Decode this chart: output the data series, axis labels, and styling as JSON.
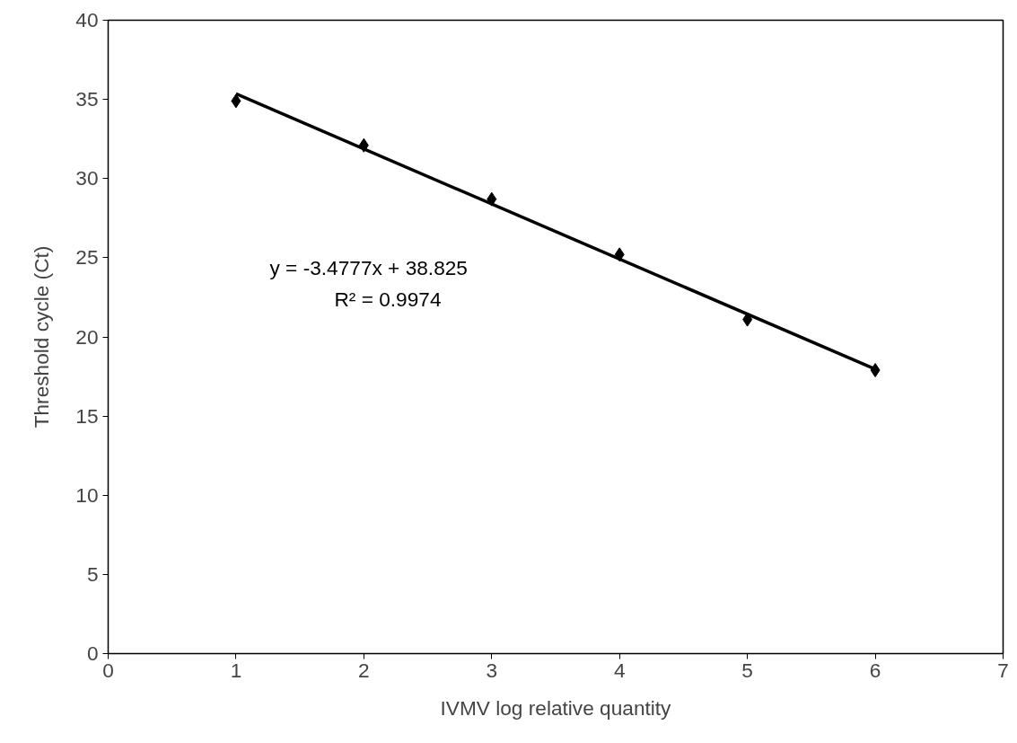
{
  "chart_data": {
    "type": "scatter",
    "xlabel": "IVMV log relative quantity",
    "ylabel": "Threshold cycle (Ct)",
    "marker": "diamond",
    "grid": false,
    "xlim": [
      0,
      7
    ],
    "xticks": [
      0,
      1,
      2,
      3,
      4,
      5,
      6,
      7
    ],
    "ylim": [
      0,
      40
    ],
    "yticks": [
      0,
      5,
      10,
      15,
      20,
      25,
      30,
      35,
      40
    ],
    "series": [
      {
        "color": "#000000",
        "x": [
          1,
          2,
          3,
          4,
          5,
          6
        ],
        "values": [
          34.9,
          32.1,
          28.7,
          25.2,
          21.1,
          17.9
        ]
      },
      {
        "type": "line",
        "marker": "none",
        "color": "#000000",
        "x": [
          1,
          6
        ],
        "values": [
          35.35,
          17.96
        ]
      }
    ],
    "annotations": [
      "y = -3.4777x + 38.825",
      "R² = 0.9974"
    ]
  }
}
